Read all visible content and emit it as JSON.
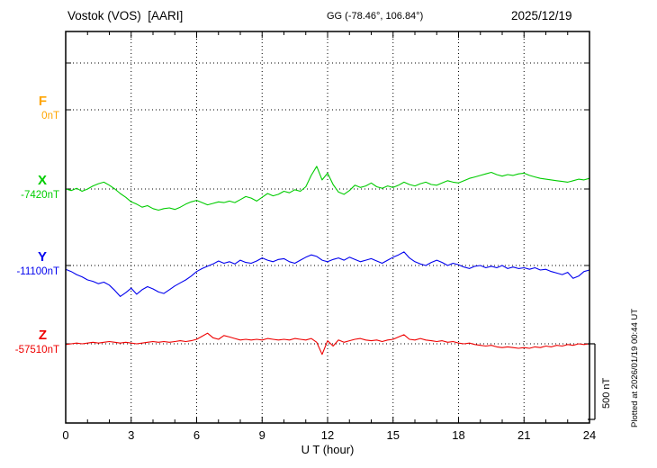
{
  "header": {
    "station": "Vostok (VOS)  [AARI]",
    "coords": "GG (-78.46°, 106.84°)",
    "date": "2025/12/19"
  },
  "axes": {
    "x_label": "U T (hour)",
    "x_ticks": [
      0,
      3,
      6,
      9,
      12,
      15,
      18,
      21,
      24
    ],
    "x_range": [
      0,
      24
    ]
  },
  "scale_bar": {
    "label": "500 nT",
    "nT": 500
  },
  "plotted_at": "Plotted at 2026/01/19 00:44 UT",
  "components": [
    {
      "id": "F",
      "label": "F",
      "baseline_label": "0nT",
      "color": "#FFA500"
    },
    {
      "id": "X",
      "label": "X",
      "baseline_label": "-7420nT",
      "color": "#00CC00"
    },
    {
      "id": "Y",
      "label": "Y",
      "baseline_label": "-11100nT",
      "color": "#0000EE"
    },
    {
      "id": "Z",
      "label": "Z",
      "baseline_label": "-57510nT",
      "color": "#EE0000"
    }
  ],
  "chart_data": {
    "type": "line",
    "title": "Vostok (VOS) [AARI] magnetogram 2025/12/19",
    "xlabel": "U T (hour)",
    "x_unit": "hour",
    "x_range": [
      0,
      24
    ],
    "x_step_hours": 0.25,
    "grid": "dotted vertical every 3 h, dotted horizontal baseline per component",
    "scale_bar_nT": 500,
    "series": [
      {
        "name": "F",
        "baseline_nT": 0,
        "color": "#FFA500",
        "offsets_nT": []
      },
      {
        "name": "X",
        "baseline_nT": -7420,
        "color": "#00CC00",
        "offsets_nT": [
          0,
          -10,
          5,
          -15,
          0,
          20,
          35,
          45,
          25,
          0,
          -30,
          -55,
          -85,
          -100,
          -120,
          -110,
          -130,
          -140,
          -130,
          -125,
          -135,
          -120,
          -100,
          -85,
          -75,
          -90,
          -105,
          -95,
          -85,
          -90,
          -80,
          -90,
          -70,
          -50,
          -60,
          -80,
          -55,
          -30,
          -45,
          -35,
          -15,
          -25,
          -5,
          -15,
          15,
          90,
          150,
          60,
          105,
          30,
          -20,
          -35,
          -10,
          25,
          10,
          20,
          40,
          15,
          5,
          20,
          10,
          25,
          45,
          30,
          20,
          35,
          45,
          30,
          25,
          40,
          55,
          45,
          40,
          55,
          70,
          80,
          90,
          100,
          110,
          95,
          85,
          95,
          90,
          100,
          105,
          90,
          80,
          70,
          65,
          60,
          55,
          50,
          45,
          55,
          65,
          60,
          70
        ]
      },
      {
        "name": "Y",
        "baseline_nT": -11100,
        "color": "#0000EE",
        "offsets_nT": [
          -25,
          -40,
          -60,
          -75,
          -95,
          -105,
          -120,
          -110,
          -130,
          -165,
          -205,
          -180,
          -150,
          -190,
          -160,
          -140,
          -155,
          -175,
          -185,
          -160,
          -135,
          -115,
          -95,
          -70,
          -40,
          -20,
          -5,
          10,
          30,
          15,
          25,
          10,
          35,
          20,
          15,
          30,
          50,
          35,
          25,
          40,
          45,
          25,
          15,
          35,
          55,
          70,
          60,
          35,
          25,
          40,
          50,
          35,
          55,
          40,
          25,
          35,
          45,
          30,
          15,
          35,
          55,
          70,
          90,
          50,
          25,
          10,
          0,
          20,
          35,
          20,
          0,
          15,
          5,
          -10,
          -20,
          -5,
          0,
          -15,
          -5,
          -15,
          0,
          -20,
          -10,
          -20,
          -15,
          -25,
          -15,
          -30,
          -25,
          -40,
          -50,
          -60,
          -45,
          -85,
          -70,
          -40,
          -30
        ]
      },
      {
        "name": "Z",
        "baseline_nT": -57510,
        "color": "#EE0000",
        "offsets_nT": [
          -5,
          0,
          5,
          0,
          5,
          10,
          5,
          10,
          15,
          10,
          5,
          10,
          5,
          0,
          5,
          10,
          15,
          10,
          15,
          10,
          15,
          20,
          15,
          20,
          30,
          50,
          70,
          40,
          30,
          55,
          45,
          35,
          25,
          30,
          25,
          30,
          25,
          35,
          30,
          25,
          30,
          25,
          35,
          30,
          25,
          35,
          10,
          -70,
          20,
          -15,
          25,
          10,
          20,
          30,
          35,
          25,
          20,
          25,
          15,
          25,
          30,
          45,
          60,
          30,
          25,
          35,
          25,
          20,
          15,
          20,
          10,
          15,
          5,
          0,
          5,
          -5,
          -10,
          -15,
          -10,
          -20,
          -25,
          -20,
          -25,
          -30,
          -25,
          -30,
          -20,
          -25,
          -15,
          -20,
          -10,
          -15,
          -5,
          -10,
          0,
          -5,
          0
        ]
      }
    ]
  }
}
